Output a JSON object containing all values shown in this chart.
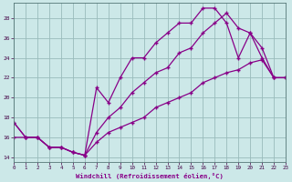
{
  "xlabel": "Windchill (Refroidissement éolien,°C)",
  "bg_color": "#cce8e8",
  "grid_color": "#99bbbb",
  "line_color": "#880088",
  "xlim": [
    0,
    23
  ],
  "ylim": [
    13.5,
    29.5
  ],
  "xticks": [
    0,
    1,
    2,
    3,
    4,
    5,
    6,
    7,
    8,
    9,
    10,
    11,
    12,
    13,
    14,
    15,
    16,
    17,
    18,
    19,
    20,
    21,
    22,
    23
  ],
  "yticks": [
    14,
    16,
    18,
    20,
    22,
    24,
    26,
    28
  ],
  "line1_x": [
    0,
    1,
    2,
    3,
    4,
    5,
    6,
    7,
    8,
    9,
    10,
    11,
    12,
    13,
    14,
    15,
    16,
    17,
    18,
    19,
    20,
    21,
    22,
    23
  ],
  "line1_y": [
    17.5,
    16.0,
    16.0,
    15.0,
    15.0,
    14.5,
    14.2,
    21.0,
    19.5,
    22.0,
    24.0,
    24.0,
    25.5,
    26.5,
    27.5,
    27.5,
    29.0,
    29.0,
    27.5,
    24.0,
    26.5,
    24.0,
    22.0,
    22.0
  ],
  "line2_x": [
    0,
    1,
    2,
    3,
    4,
    5,
    6,
    7,
    8,
    9,
    10,
    11,
    12,
    13,
    14,
    15,
    16,
    17,
    18,
    19,
    20,
    21,
    22,
    23
  ],
  "line2_y": [
    17.5,
    16.0,
    16.0,
    15.0,
    15.0,
    14.5,
    14.2,
    16.5,
    18.0,
    19.0,
    20.5,
    21.5,
    22.5,
    23.0,
    24.5,
    25.0,
    26.5,
    27.5,
    28.5,
    27.0,
    26.5,
    25.0,
    22.0,
    22.0
  ],
  "line3_x": [
    0,
    1,
    2,
    3,
    4,
    5,
    6,
    7,
    8,
    9,
    10,
    11,
    12,
    13,
    14,
    15,
    16,
    17,
    18,
    19,
    20,
    21,
    22,
    23
  ],
  "line3_y": [
    16.0,
    16.0,
    16.0,
    15.0,
    15.0,
    14.5,
    14.2,
    15.5,
    16.5,
    17.0,
    17.5,
    18.0,
    19.0,
    19.5,
    20.0,
    20.5,
    21.5,
    22.0,
    22.5,
    22.8,
    23.5,
    23.8,
    22.0,
    22.0
  ]
}
